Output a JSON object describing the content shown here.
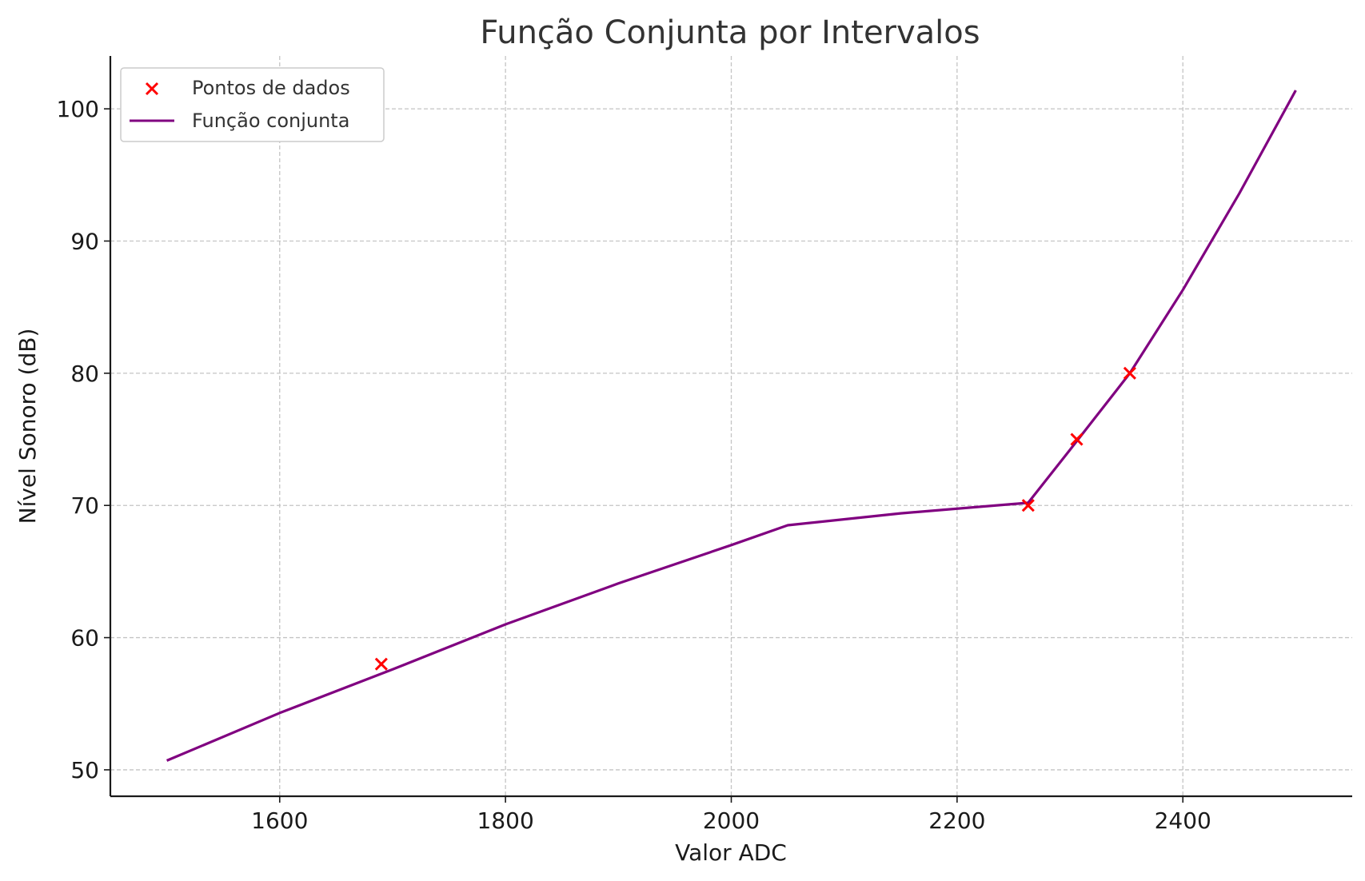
{
  "chart_data": {
    "type": "line",
    "title": "Função Conjunta por Intervalos",
    "xlabel": "Valor ADC",
    "ylabel": "Nível Sonoro (dB)",
    "xlim": [
      1450,
      2550
    ],
    "ylim": [
      48,
      104
    ],
    "xticks": [
      1600,
      1800,
      2000,
      2200,
      2400
    ],
    "yticks": [
      50,
      60,
      70,
      80,
      90,
      100
    ],
    "grid": true,
    "legend_position": "top-left",
    "colors": {
      "line": "#800080",
      "points": "#ff0000"
    },
    "series": [
      {
        "name": "Pontos de dados",
        "kind": "scatter",
        "marker": "x",
        "x": [
          1690,
          2263,
          2306,
          2353
        ],
        "y": [
          58,
          70,
          75,
          80
        ]
      },
      {
        "name": "Função conjunta",
        "kind": "line",
        "x": [
          1500,
          1600,
          1700,
          1800,
          1900,
          2000,
          2050,
          2150,
          2263,
          2300,
          2353,
          2400,
          2450,
          2500
        ],
        "y": [
          50.7,
          54.3,
          57.6,
          61.0,
          64.1,
          67.0,
          68.5,
          69.4,
          70.2,
          74.2,
          80.0,
          86.3,
          93.6,
          101.4
        ]
      }
    ]
  }
}
